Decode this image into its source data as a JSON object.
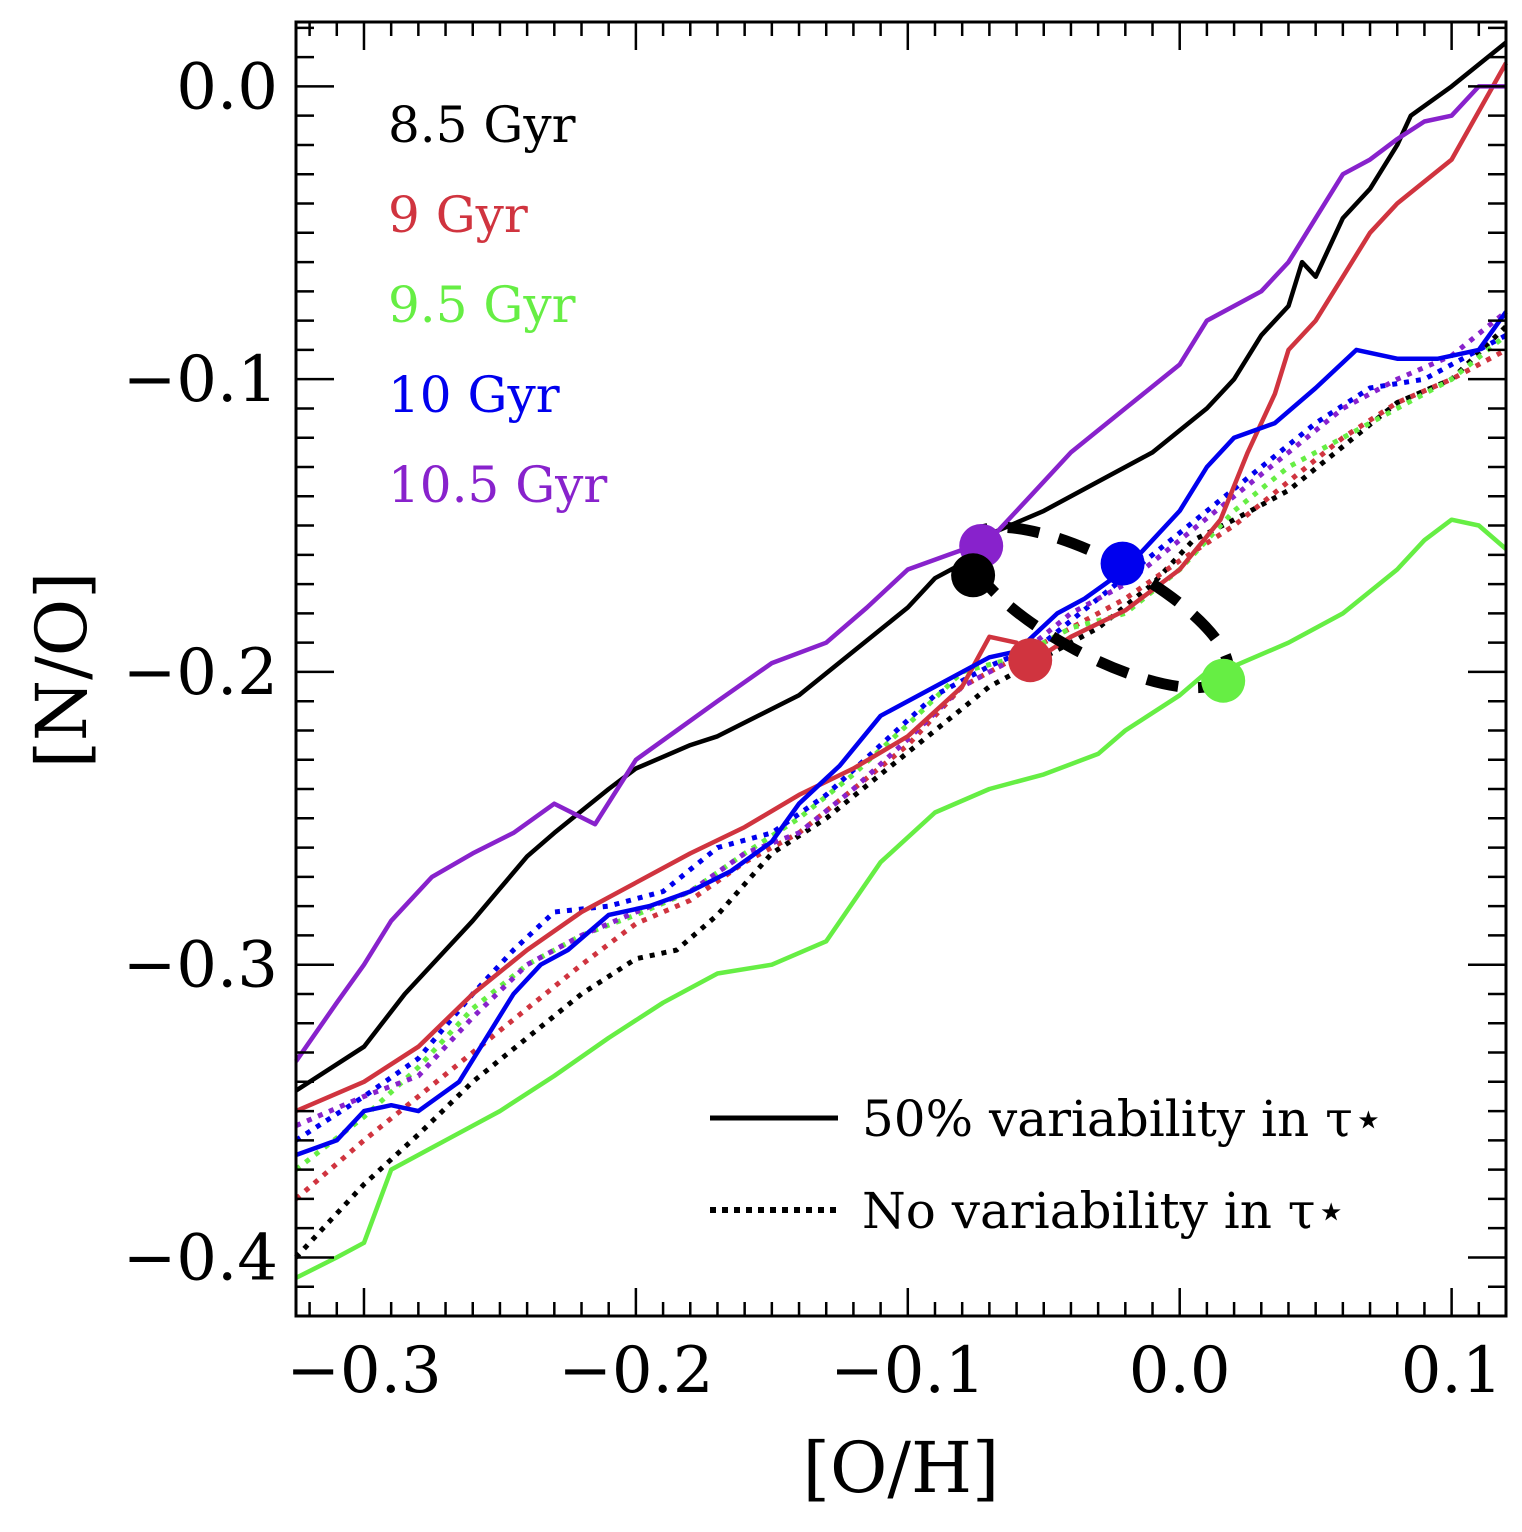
{
  "chart_data": {
    "type": "line",
    "xlabel": "[O/H]",
    "ylabel": "[N/O]",
    "xlim": [
      -0.325,
      0.12
    ],
    "ylim": [
      -0.42,
      0.022
    ],
    "x_ticks": [
      -0.3,
      -0.2,
      -0.1,
      0.0,
      0.1
    ],
    "x_tick_labels": [
      "−0.3",
      "−0.2",
      "−0.1",
      "0.0",
      "0.1"
    ],
    "y_ticks": [
      0.0,
      -0.1,
      -0.2,
      -0.3,
      -0.4
    ],
    "y_tick_labels": [
      "0.0",
      "−0.1",
      "−0.2",
      "−0.3",
      "−0.4"
    ],
    "grid": false,
    "age_labels": [
      {
        "text": "8.5 Gyr",
        "color": "#000000"
      },
      {
        "text": "9 Gyr",
        "color": "#d0343f"
      },
      {
        "text": "9.5 Gyr",
        "color": "#66ee44"
      },
      {
        "text": "10 Gyr",
        "color": "#0000ee"
      },
      {
        "text": "10.5 Gyr",
        "color": "#8822cc"
      }
    ],
    "legend": {
      "placement": "lower-right",
      "entries": [
        {
          "label": "50% variability in τ⋆",
          "style": "solid"
        },
        {
          "label": "No variability in τ⋆",
          "style": "dotted"
        }
      ]
    },
    "series": [
      {
        "color": "#000000",
        "style": "solid",
        "points": [
          [
            -0.325,
            -0.343
          ],
          [
            -0.3,
            -0.328
          ],
          [
            -0.285,
            -0.31
          ],
          [
            -0.27,
            -0.295
          ],
          [
            -0.26,
            -0.285
          ],
          [
            -0.25,
            -0.274
          ],
          [
            -0.24,
            -0.263
          ],
          [
            -0.23,
            -0.255
          ],
          [
            -0.21,
            -0.24
          ],
          [
            -0.2,
            -0.233
          ],
          [
            -0.19,
            -0.229
          ],
          [
            -0.18,
            -0.225
          ],
          [
            -0.17,
            -0.222
          ],
          [
            -0.155,
            -0.215
          ],
          [
            -0.14,
            -0.208
          ],
          [
            -0.12,
            -0.193
          ],
          [
            -0.1,
            -0.178
          ],
          [
            -0.09,
            -0.168
          ],
          [
            -0.08,
            -0.163
          ],
          [
            -0.07,
            -0.153
          ],
          [
            -0.05,
            -0.145
          ],
          [
            -0.03,
            -0.135
          ],
          [
            -0.01,
            -0.125
          ],
          [
            0.01,
            -0.11
          ],
          [
            0.02,
            -0.1
          ],
          [
            0.03,
            -0.085
          ],
          [
            0.04,
            -0.075
          ],
          [
            0.045,
            -0.06
          ],
          [
            0.05,
            -0.065
          ],
          [
            0.06,
            -0.045
          ],
          [
            0.07,
            -0.035
          ],
          [
            0.08,
            -0.02
          ],
          [
            0.085,
            -0.01
          ],
          [
            0.1,
            0.0
          ],
          [
            0.12,
            0.015
          ]
        ]
      },
      {
        "color": "#d0343f",
        "style": "solid",
        "points": [
          [
            -0.325,
            -0.35
          ],
          [
            -0.3,
            -0.34
          ],
          [
            -0.28,
            -0.328
          ],
          [
            -0.26,
            -0.31
          ],
          [
            -0.24,
            -0.295
          ],
          [
            -0.22,
            -0.282
          ],
          [
            -0.2,
            -0.272
          ],
          [
            -0.18,
            -0.262
          ],
          [
            -0.16,
            -0.253
          ],
          [
            -0.14,
            -0.242
          ],
          [
            -0.12,
            -0.233
          ],
          [
            -0.1,
            -0.222
          ],
          [
            -0.08,
            -0.205
          ],
          [
            -0.07,
            -0.188
          ],
          [
            -0.06,
            -0.19
          ],
          [
            -0.055,
            -0.197
          ],
          [
            -0.04,
            -0.188
          ],
          [
            -0.02,
            -0.179
          ],
          [
            0.0,
            -0.165
          ],
          [
            0.015,
            -0.148
          ],
          [
            0.025,
            -0.125
          ],
          [
            0.035,
            -0.105
          ],
          [
            0.04,
            -0.09
          ],
          [
            0.05,
            -0.08
          ],
          [
            0.06,
            -0.065
          ],
          [
            0.07,
            -0.05
          ],
          [
            0.08,
            -0.04
          ],
          [
            0.1,
            -0.025
          ],
          [
            0.12,
            0.008
          ]
        ]
      },
      {
        "color": "#66ee44",
        "style": "solid",
        "points": [
          [
            -0.325,
            -0.407
          ],
          [
            -0.31,
            -0.4
          ],
          [
            -0.3,
            -0.395
          ],
          [
            -0.29,
            -0.37
          ],
          [
            -0.27,
            -0.36
          ],
          [
            -0.25,
            -0.35
          ],
          [
            -0.23,
            -0.338
          ],
          [
            -0.21,
            -0.325
          ],
          [
            -0.19,
            -0.313
          ],
          [
            -0.17,
            -0.303
          ],
          [
            -0.15,
            -0.3
          ],
          [
            -0.13,
            -0.292
          ],
          [
            -0.11,
            -0.265
          ],
          [
            -0.09,
            -0.248
          ],
          [
            -0.07,
            -0.24
          ],
          [
            -0.05,
            -0.235
          ],
          [
            -0.03,
            -0.228
          ],
          [
            -0.02,
            -0.22
          ],
          [
            0.0,
            -0.208
          ],
          [
            0.01,
            -0.2
          ],
          [
            0.02,
            -0.198
          ],
          [
            0.04,
            -0.19
          ],
          [
            0.06,
            -0.18
          ],
          [
            0.08,
            -0.165
          ],
          [
            0.09,
            -0.155
          ],
          [
            0.1,
            -0.148
          ],
          [
            0.11,
            -0.15
          ],
          [
            0.12,
            -0.158
          ]
        ]
      },
      {
        "color": "#0000ee",
        "style": "solid",
        "points": [
          [
            -0.325,
            -0.365
          ],
          [
            -0.31,
            -0.36
          ],
          [
            -0.3,
            -0.35
          ],
          [
            -0.29,
            -0.348
          ],
          [
            -0.28,
            -0.35
          ],
          [
            -0.265,
            -0.34
          ],
          [
            -0.255,
            -0.325
          ],
          [
            -0.245,
            -0.31
          ],
          [
            -0.235,
            -0.3
          ],
          [
            -0.225,
            -0.295
          ],
          [
            -0.21,
            -0.283
          ],
          [
            -0.195,
            -0.28
          ],
          [
            -0.18,
            -0.275
          ],
          [
            -0.165,
            -0.268
          ],
          [
            -0.15,
            -0.258
          ],
          [
            -0.14,
            -0.245
          ],
          [
            -0.125,
            -0.232
          ],
          [
            -0.11,
            -0.215
          ],
          [
            -0.09,
            -0.205
          ],
          [
            -0.07,
            -0.195
          ],
          [
            -0.06,
            -0.193
          ],
          [
            -0.045,
            -0.18
          ],
          [
            -0.035,
            -0.175
          ],
          [
            -0.02,
            -0.165
          ],
          [
            -0.01,
            -0.155
          ],
          [
            0.0,
            -0.145
          ],
          [
            0.01,
            -0.13
          ],
          [
            0.02,
            -0.12
          ],
          [
            0.035,
            -0.115
          ],
          [
            0.05,
            -0.103
          ],
          [
            0.065,
            -0.09
          ],
          [
            0.08,
            -0.093
          ],
          [
            0.095,
            -0.093
          ],
          [
            0.11,
            -0.09
          ],
          [
            0.12,
            -0.077
          ]
        ]
      },
      {
        "color": "#8822cc",
        "style": "solid",
        "points": [
          [
            -0.325,
            -0.333
          ],
          [
            -0.31,
            -0.313
          ],
          [
            -0.3,
            -0.3
          ],
          [
            -0.29,
            -0.285
          ],
          [
            -0.275,
            -0.27
          ],
          [
            -0.26,
            -0.262
          ],
          [
            -0.245,
            -0.255
          ],
          [
            -0.23,
            -0.245
          ],
          [
            -0.215,
            -0.252
          ],
          [
            -0.2,
            -0.23
          ],
          [
            -0.185,
            -0.22
          ],
          [
            -0.17,
            -0.21
          ],
          [
            -0.15,
            -0.197
          ],
          [
            -0.13,
            -0.19
          ],
          [
            -0.115,
            -0.178
          ],
          [
            -0.1,
            -0.165
          ],
          [
            -0.085,
            -0.16
          ],
          [
            -0.07,
            -0.155
          ],
          [
            -0.055,
            -0.14
          ],
          [
            -0.04,
            -0.125
          ],
          [
            -0.02,
            -0.11
          ],
          [
            0.0,
            -0.095
          ],
          [
            0.01,
            -0.08
          ],
          [
            0.02,
            -0.075
          ],
          [
            0.03,
            -0.07
          ],
          [
            0.04,
            -0.06
          ],
          [
            0.05,
            -0.045
          ],
          [
            0.06,
            -0.03
          ],
          [
            0.07,
            -0.025
          ],
          [
            0.08,
            -0.018
          ],
          [
            0.09,
            -0.012
          ],
          [
            0.1,
            -0.01
          ],
          [
            0.11,
            0.0
          ],
          [
            0.12,
            0.0
          ]
        ]
      },
      {
        "color": "#000000",
        "style": "dotted",
        "points": [
          [
            -0.325,
            -0.4
          ],
          [
            -0.3,
            -0.375
          ],
          [
            -0.28,
            -0.358
          ],
          [
            -0.26,
            -0.34
          ],
          [
            -0.24,
            -0.325
          ],
          [
            -0.22,
            -0.31
          ],
          [
            -0.2,
            -0.298
          ],
          [
            -0.185,
            -0.295
          ],
          [
            -0.17,
            -0.283
          ],
          [
            -0.15,
            -0.262
          ],
          [
            -0.13,
            -0.25
          ],
          [
            -0.11,
            -0.235
          ],
          [
            -0.09,
            -0.22
          ],
          [
            -0.07,
            -0.205
          ],
          [
            -0.05,
            -0.195
          ],
          [
            -0.03,
            -0.185
          ],
          [
            -0.01,
            -0.17
          ],
          [
            0.005,
            -0.155
          ],
          [
            0.02,
            -0.148
          ],
          [
            0.04,
            -0.138
          ],
          [
            0.06,
            -0.123
          ],
          [
            0.08,
            -0.108
          ],
          [
            0.1,
            -0.1
          ],
          [
            0.12,
            -0.082
          ]
        ]
      },
      {
        "color": "#d0343f",
        "style": "dotted",
        "points": [
          [
            -0.325,
            -0.38
          ],
          [
            -0.3,
            -0.36
          ],
          [
            -0.28,
            -0.345
          ],
          [
            -0.26,
            -0.33
          ],
          [
            -0.24,
            -0.315
          ],
          [
            -0.22,
            -0.3
          ],
          [
            -0.2,
            -0.286
          ],
          [
            -0.18,
            -0.278
          ],
          [
            -0.16,
            -0.265
          ],
          [
            -0.14,
            -0.255
          ],
          [
            -0.12,
            -0.24
          ],
          [
            -0.1,
            -0.225
          ],
          [
            -0.08,
            -0.205
          ],
          [
            -0.06,
            -0.195
          ],
          [
            -0.04,
            -0.185
          ],
          [
            -0.02,
            -0.175
          ],
          [
            0.0,
            -0.162
          ],
          [
            0.02,
            -0.15
          ],
          [
            0.04,
            -0.135
          ],
          [
            0.06,
            -0.12
          ],
          [
            0.08,
            -0.108
          ],
          [
            0.1,
            -0.1
          ],
          [
            0.12,
            -0.09
          ]
        ]
      },
      {
        "color": "#66ee44",
        "style": "dotted",
        "points": [
          [
            -0.325,
            -0.37
          ],
          [
            -0.3,
            -0.352
          ],
          [
            -0.28,
            -0.335
          ],
          [
            -0.26,
            -0.315
          ],
          [
            -0.24,
            -0.3
          ],
          [
            -0.22,
            -0.29
          ],
          [
            -0.2,
            -0.283
          ],
          [
            -0.18,
            -0.275
          ],
          [
            -0.16,
            -0.262
          ],
          [
            -0.14,
            -0.25
          ],
          [
            -0.12,
            -0.235
          ],
          [
            -0.1,
            -0.218
          ],
          [
            -0.08,
            -0.2
          ],
          [
            -0.06,
            -0.195
          ],
          [
            -0.04,
            -0.185
          ],
          [
            -0.02,
            -0.18
          ],
          [
            0.0,
            -0.165
          ],
          [
            0.02,
            -0.145
          ],
          [
            0.04,
            -0.13
          ],
          [
            0.06,
            -0.12
          ],
          [
            0.08,
            -0.11
          ],
          [
            0.1,
            -0.1
          ],
          [
            0.12,
            -0.085
          ]
        ]
      },
      {
        "color": "#0000ee",
        "style": "dotted",
        "points": [
          [
            -0.325,
            -0.36
          ],
          [
            -0.3,
            -0.345
          ],
          [
            -0.28,
            -0.332
          ],
          [
            -0.26,
            -0.31
          ],
          [
            -0.245,
            -0.295
          ],
          [
            -0.23,
            -0.282
          ],
          [
            -0.21,
            -0.28
          ],
          [
            -0.19,
            -0.275
          ],
          [
            -0.17,
            -0.26
          ],
          [
            -0.15,
            -0.255
          ],
          [
            -0.13,
            -0.242
          ],
          [
            -0.11,
            -0.225
          ],
          [
            -0.09,
            -0.208
          ],
          [
            -0.07,
            -0.198
          ],
          [
            -0.05,
            -0.19
          ],
          [
            -0.03,
            -0.175
          ],
          [
            -0.01,
            -0.16
          ],
          [
            0.01,
            -0.145
          ],
          [
            0.03,
            -0.13
          ],
          [
            0.05,
            -0.115
          ],
          [
            0.07,
            -0.103
          ],
          [
            0.09,
            -0.1
          ],
          [
            0.12,
            -0.085
          ]
        ]
      },
      {
        "color": "#8822cc",
        "style": "dotted",
        "points": [
          [
            -0.325,
            -0.355
          ],
          [
            -0.3,
            -0.345
          ],
          [
            -0.28,
            -0.338
          ],
          [
            -0.26,
            -0.318
          ],
          [
            -0.24,
            -0.3
          ],
          [
            -0.22,
            -0.29
          ],
          [
            -0.2,
            -0.282
          ],
          [
            -0.18,
            -0.275
          ],
          [
            -0.16,
            -0.262
          ],
          [
            -0.14,
            -0.255
          ],
          [
            -0.12,
            -0.24
          ],
          [
            -0.1,
            -0.223
          ],
          [
            -0.08,
            -0.205
          ],
          [
            -0.06,
            -0.195
          ],
          [
            -0.04,
            -0.18
          ],
          [
            -0.02,
            -0.17
          ],
          [
            0.0,
            -0.155
          ],
          [
            0.02,
            -0.14
          ],
          [
            0.04,
            -0.125
          ],
          [
            0.06,
            -0.11
          ],
          [
            0.08,
            -0.1
          ],
          [
            0.1,
            -0.092
          ],
          [
            0.12,
            -0.077
          ]
        ]
      }
    ],
    "markers": [
      {
        "color": "#8822cc",
        "x": -0.073,
        "y": -0.157
      },
      {
        "color": "#000000",
        "x": -0.076,
        "y": -0.167
      },
      {
        "color": "#d0343f",
        "x": -0.055,
        "y": -0.196
      },
      {
        "color": "#0000ee",
        "x": -0.021,
        "y": -0.163
      },
      {
        "color": "#66ee44",
        "x": 0.016,
        "y": -0.203
      }
    ]
  }
}
